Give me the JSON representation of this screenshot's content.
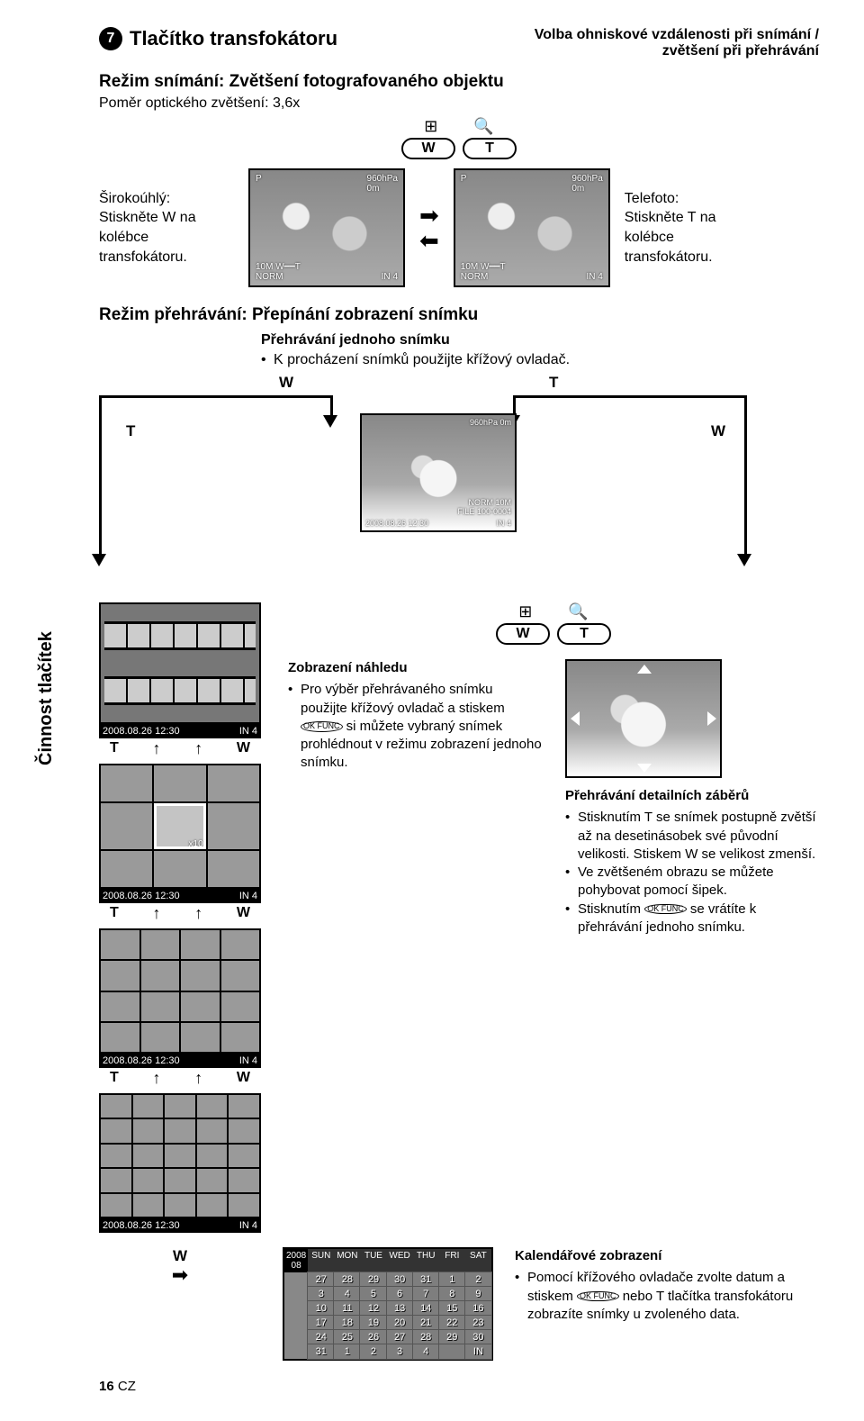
{
  "header": {
    "num": "7",
    "title": "Tlačítko transfokátoru",
    "right_line1": "Volba ohniskové vzdálenosti při snímání /",
    "right_line2": "zvětšení při přehrávání"
  },
  "shoot": {
    "title": "Režim snímání: Zvětšení fotografovaného objektu",
    "ratio": "Poměr optického zvětšení: 3,6x",
    "wide_label1": "Širokoúhlý:",
    "wide_label2": "Stiskněte W na kolébce",
    "wide_label3": "transfokátoru.",
    "tele_label1": "Telefoto:",
    "tele_label2": "Stiskněte T na kolébce",
    "tele_label3": "transfokátoru.",
    "ovl_pressure": "960hPa",
    "ovl_alt": "0m",
    "ovl_mode": "P",
    "ovl_count": "4",
    "ovl_size": "10M",
    "ovl_norm": "NORM",
    "ovl_in": "IN",
    "wt_icon_w": "W",
    "wt_icon_t": "T",
    "icon_grid": "⊞",
    "icon_mag": "🔍"
  },
  "play": {
    "title": "Režim přehrávání: Přepínání zobrazení snímku",
    "single_title": "Přehrávání jednoho snímku",
    "single_bullet": "K procházení snímků použijte křížový ovladač.",
    "center_ovl_pressure": "960hPa 0m",
    "center_ovl_file": "100-0004",
    "center_ovl_norm": "NORM",
    "center_ovl_size": "10M",
    "center_ovl_date": "2008.08.26 12:30",
    "center_ovl_in": "IN",
    "center_ovl_count": "4",
    "lbl_W": "W",
    "lbl_T": "T"
  },
  "middle": {
    "caption_date": "2008.08.26 12:30",
    "caption_in": "IN",
    "caption_count": "4",
    "x10": "x10",
    "index_title": "Zobrazení náhledu",
    "index_b1": "Pro výběr přehrávaného snímku použijte křížový ovladač a stiskem",
    "index_b1b": "si můžete vybraný snímek prohlédnout v režimu zobrazení jednoho snímku.",
    "detail_title": "Přehrávání detailních záběrů",
    "detail_b1": "Stisknutím T se snímek postupně zvětší až na desetinásobek své původní velikosti. Stiskem W se velikost zmenší.",
    "detail_b2": "Ve zvětšeném obrazu se můžete pohybovat pomocí šipek.",
    "detail_b3a": "Stisknutím",
    "detail_b3b": "se vrátíte k přehrávání jednoho snímku.",
    "ok_label": "OK FUNC"
  },
  "calendar": {
    "title": "Kalendářové zobrazení",
    "b1a": "Pomocí křížového ovladače zvolte datum a stiskem",
    "b1b": "nebo T tlačítka transfokátoru zobrazíte snímky u zvoleného data.",
    "year": "2008",
    "month": "08",
    "days": [
      "SUN",
      "MON",
      "TUE",
      "WED",
      "THU",
      "FRI",
      "SAT"
    ],
    "rows": [
      [
        "27",
        "28",
        "29",
        "30",
        "31",
        "1",
        "2"
      ],
      [
        "3",
        "4",
        "5",
        "6",
        "7",
        "8",
        "9"
      ],
      [
        "10",
        "11",
        "12",
        "13",
        "14",
        "15",
        "16"
      ],
      [
        "17",
        "18",
        "19",
        "20",
        "21",
        "22",
        "23"
      ],
      [
        "24",
        "25",
        "26",
        "27",
        "28",
        "29",
        "30"
      ],
      [
        "31",
        "1",
        "2",
        "3",
        "4",
        "",
        "IN"
      ]
    ],
    "lbl_W": "W"
  },
  "side_label": "Činnost tlačítek",
  "footer": {
    "page": "16",
    "lang": "CZ"
  }
}
